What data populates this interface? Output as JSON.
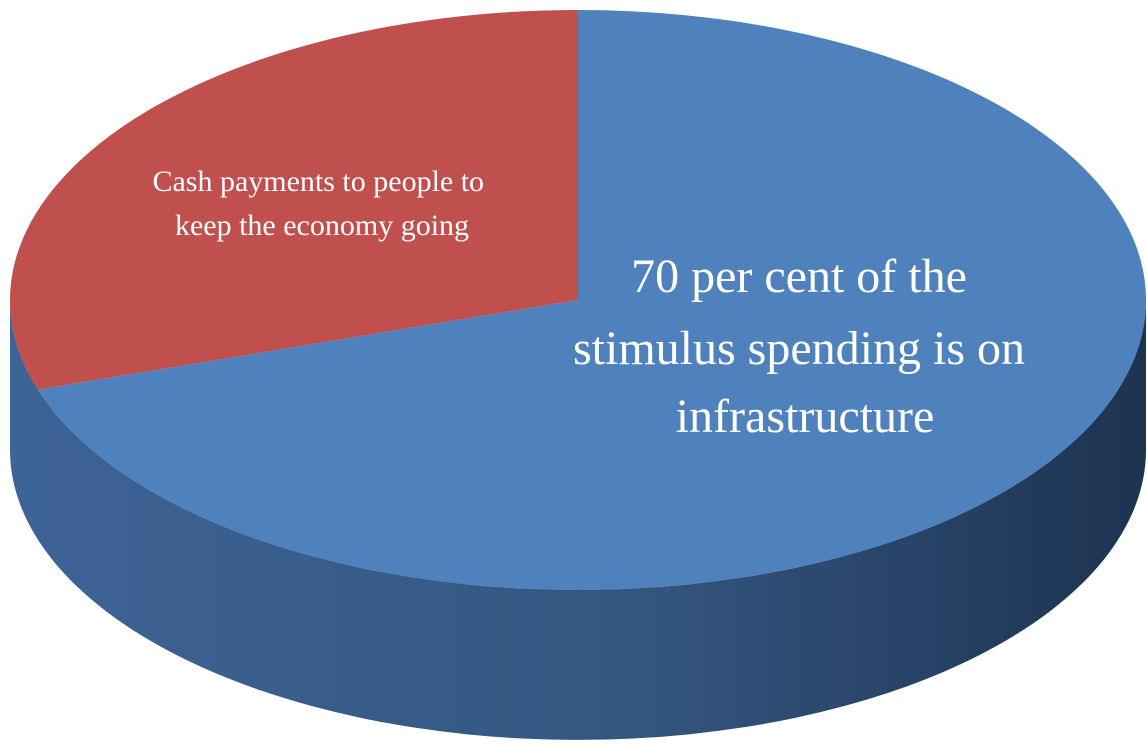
{
  "chart_data": {
    "type": "pie",
    "style": "3d",
    "title": "",
    "slices": [
      {
        "label": "70 per cent of the stimulus spending is on infrastructure",
        "value": 70,
        "color": "#4f81bd",
        "side_color": "#3b6192"
      },
      {
        "label": "Cash payments to people to keep the economy going",
        "value": 30,
        "color": "#c0504d",
        "side_color": "#8e3b39"
      }
    ],
    "legend": "none",
    "grid": false
  }
}
